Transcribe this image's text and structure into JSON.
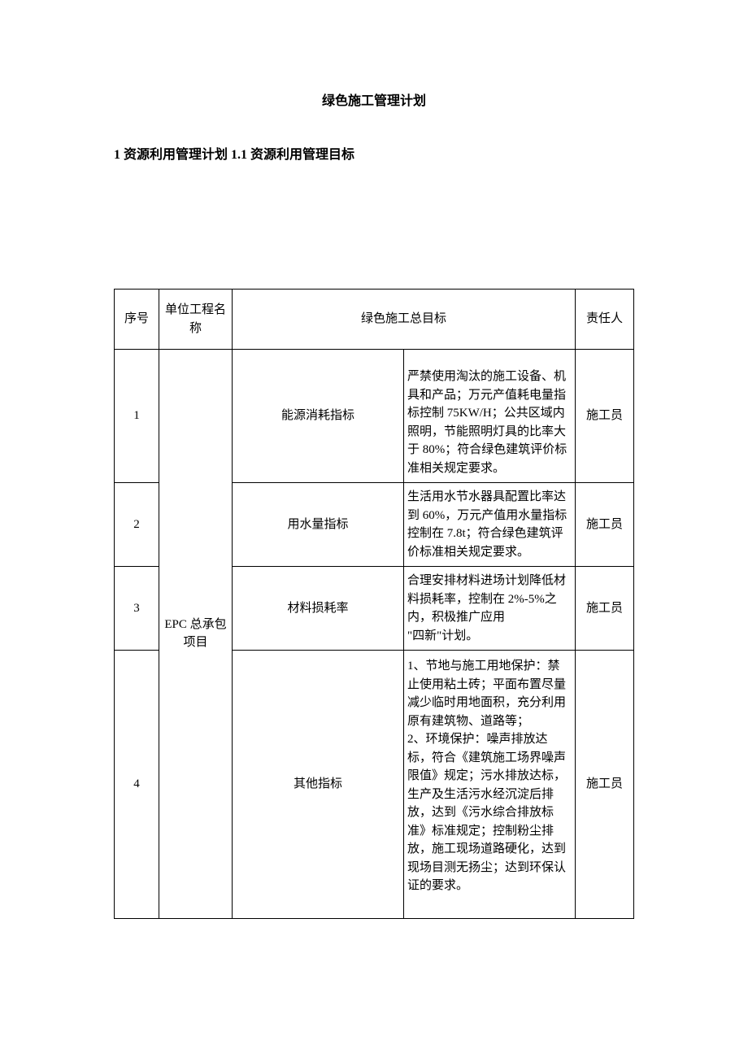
{
  "document": {
    "title": "绿色施工管理计划",
    "section_heading": "1 资源利用管理计划 1.1 资源利用管理目标"
  },
  "table": {
    "headers": {
      "seq": "序号",
      "project_name": "单位工程名称",
      "goal": "绿色施工总目标",
      "responsible": "责任人"
    },
    "project_name_value": "EPC 总承包项目",
    "rows": [
      {
        "seq": "1",
        "indicator": "能源消耗指标",
        "detail": "严禁使用淘汰的施工设备、机具和产品；万元产值耗电量指标控制 75KW/H；公共区域内照明，节能照明灯具的比率大于 80%；符合绿色建筑评价标准相关规定要求。",
        "responsible": "施工员"
      },
      {
        "seq": "2",
        "indicator": "用水量指标",
        "detail": "生活用水节水器具配置比率达到 60%，万元产值用水量指标控制在 7.8t；符合绿色建筑评价标准相关规定要求。",
        "responsible": "施工员"
      },
      {
        "seq": "3",
        "indicator": "材料损耗率",
        "detail": "合理安排材料进场计划降低材料损耗率，控制在 2%-5%之内，积极推广应用\n\"四新\"计划。",
        "responsible": "施工员"
      },
      {
        "seq": "4",
        "indicator": "其他指标",
        "detail": "1、节地与施工用地保护：禁止使用粘土砖；平面布置尽量减少临时用地面积，充分利用原有建筑物、道路等；\n2、环境保护：噪声排放达标，符合《建筑施工场界噪声限值》规定；污水排放达标，生产及生活污水经沉淀后排放，达到《污水综合排放标准》标准规定；控制粉尘排放，施工现场道路硬化，达到现场目测无扬尘；达到环保认证的要求。",
        "responsible": "施工员"
      }
    ]
  },
  "styling": {
    "page_background": "#ffffff",
    "text_color": "#000000",
    "border_color": "#000000",
    "title_fontsize": 16,
    "body_fontsize": 15,
    "font_family": "SimSun"
  }
}
